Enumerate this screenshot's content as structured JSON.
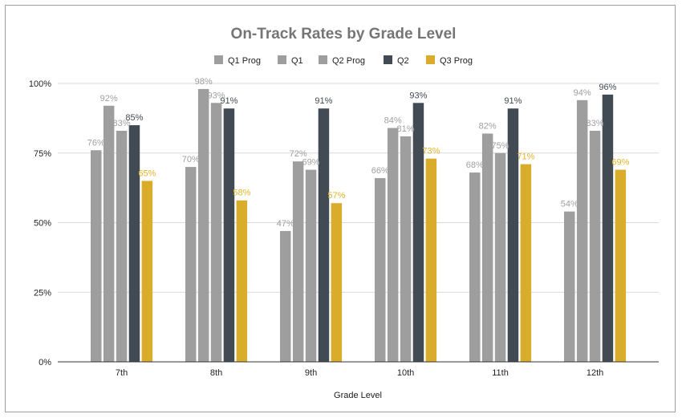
{
  "chart_data": {
    "type": "bar",
    "title": "On-Track Rates by Grade Level",
    "xlabel": "Grade Level",
    "ylabel": "",
    "ylim": [
      0,
      100
    ],
    "y_ticks": [
      "0%",
      "25%",
      "50%",
      "75%",
      "100%"
    ],
    "y_tick_values": [
      0,
      25,
      50,
      75,
      100
    ],
    "grid": true,
    "legend_position": "top",
    "categories": [
      "7th",
      "8th",
      "9th",
      "10th",
      "11th",
      "12th"
    ],
    "series": [
      {
        "name": "Q1 Prog",
        "color": "#9e9e9e",
        "label_color": "#9e9e9e",
        "values": [
          76,
          70,
          47,
          66,
          68,
          54
        ]
      },
      {
        "name": "Q1",
        "color": "#9e9e9e",
        "label_color": "#9e9e9e",
        "values": [
          92,
          98,
          72,
          84,
          82,
          94
        ]
      },
      {
        "name": "Q2 Prog",
        "color": "#9e9e9e",
        "label_color": "#9e9e9e",
        "values": [
          83,
          93,
          69,
          81,
          75,
          83
        ]
      },
      {
        "name": "Q2",
        "color": "#424b54",
        "label_color": "#424b54",
        "values": [
          85,
          91,
          91,
          93,
          91,
          96
        ]
      },
      {
        "name": "Q3 Prog",
        "color": "#d9ac2b",
        "label_color": "#e2b42c",
        "values": [
          65,
          58,
          57,
          73,
          71,
          69
        ]
      }
    ]
  }
}
